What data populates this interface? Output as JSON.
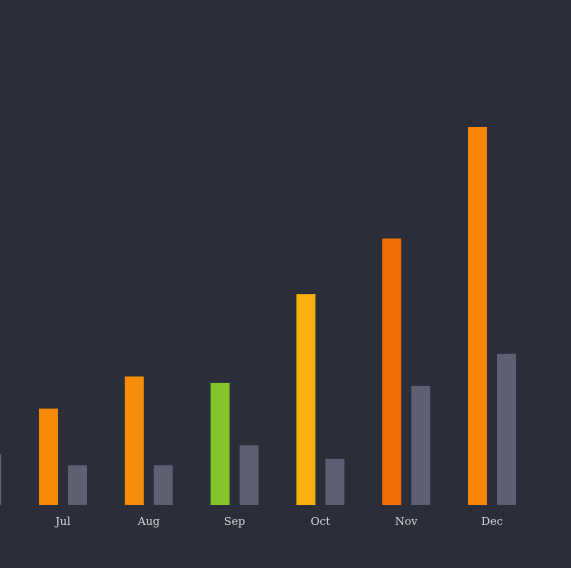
{
  "chart_data": {
    "type": "bar",
    "categories": [
      "Jul",
      "Aug",
      "Sep",
      "Oct",
      "Nov",
      "Dec"
    ],
    "partial_left_category": {
      "label": "",
      "secondary_value": 13.5
    },
    "series": [
      {
        "values": [
          25.5,
          34,
          32.3,
          55.8,
          70.5,
          100
        ],
        "colors": [
          "#f58a07",
          "#f68d09",
          "#84c42b",
          "#f9b10e",
          "#f26d06",
          "#f68508"
        ]
      },
      {
        "values": [
          10.5,
          10.5,
          15.8,
          12.2,
          31.5,
          40
        ],
        "color": "#5d6070"
      }
    ],
    "ylim": [
      0,
      100
    ],
    "title": "",
    "xlabel": "",
    "ylabel": "",
    "grid": false,
    "legend": "none"
  },
  "colors": {
    "background": "#2b2e38",
    "tick_label": "#d8d8dc"
  }
}
